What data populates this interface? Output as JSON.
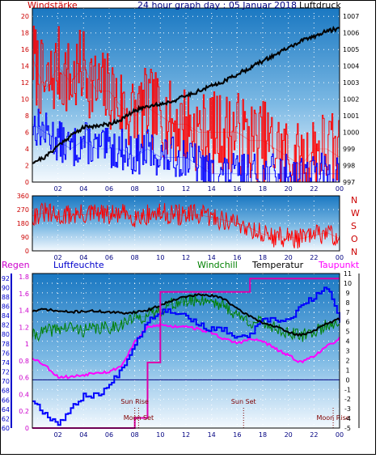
{
  "top_panel": {
    "title": "24 hour graph day : 05 Januar 2018",
    "left_label": "Windstärke",
    "right_label": "Luftdruck",
    "colors": {
      "gust": "#ff0000",
      "wind": "#0000ff",
      "pressure": "#000000",
      "label_left": "#cc0000",
      "label_right": "#000000",
      "title": "#000080"
    }
  },
  "mid_panel": {
    "compass": [
      "N",
      "W",
      "S",
      "O",
      "N"
    ],
    "colors": {
      "direction": "#ff0000",
      "compass": "#cc0000"
    }
  },
  "bottom_panel": {
    "labels": {
      "regen": "Regen",
      "luftfeuchte": "Luftfeuchte",
      "windchill": "Windchill",
      "temperatur": "Temperatur",
      "taupunkt": "Taupunkt"
    },
    "annotations": {
      "sun_rise": "Sun Rise",
      "sun_set": "Sun Set",
      "moon_set": "Moon Set",
      "moon_rise": "Moon Rise"
    },
    "colors": {
      "regen": "#cc00cc",
      "luftfeuchte": "#0000cc",
      "windchill": "#008000",
      "temperatur": "#000000",
      "taupunkt": "#ff00ff",
      "zero_line": "#000080"
    }
  },
  "x_ticks": [
    "02",
    "04",
    "06",
    "08",
    "10",
    "12",
    "14",
    "16",
    "18",
    "20",
    "22",
    "00"
  ],
  "chart_data": [
    {
      "type": "line",
      "name": "wind_pressure",
      "x": [
        0,
        1,
        2,
        3,
        4,
        5,
        6,
        7,
        8,
        9,
        10,
        11,
        12,
        13,
        14,
        15,
        16,
        17,
        18,
        19,
        20,
        21,
        22,
        23,
        24
      ],
      "series": [
        {
          "name": "Windstärke (Böen)",
          "axis": "left",
          "values": [
            15,
            11,
            14,
            12,
            14,
            11,
            11,
            9,
            8,
            9,
            8,
            7,
            7,
            6,
            6,
            6,
            6,
            5,
            5,
            4,
            3,
            2,
            4,
            4,
            3
          ]
        },
        {
          "name": "Windstärke",
          "axis": "left",
          "values": [
            7,
            6,
            5,
            4,
            5,
            4,
            4,
            4,
            3,
            4,
            3,
            3,
            3,
            2,
            1,
            1,
            1,
            1,
            1,
            1,
            1,
            1,
            1,
            1,
            1
          ]
        },
        {
          "name": "Luftdruck",
          "axis": "right",
          "values": [
            998.2,
            998.5,
            999.2,
            999.8,
            1000.3,
            1000.4,
            1000.5,
            1000.8,
            1001.3,
            1001.6,
            1001.7,
            1001.9,
            1002.2,
            1002.5,
            1002.8,
            1003.1,
            1003.5,
            1003.9,
            1004.3,
            1004.7,
            1005.1,
            1005.5,
            1005.8,
            1006.1,
            1006.3
          ]
        }
      ],
      "y_left_ticks": [
        0,
        2,
        4,
        6,
        8,
        10,
        12,
        14,
        16,
        18,
        20
      ],
      "y_right_ticks": [
        997,
        998,
        999,
        1000,
        1001,
        1002,
        1003,
        1004,
        1005,
        1006,
        1007
      ],
      "ylim_left": [
        0,
        21
      ],
      "ylim_right": [
        997,
        1007.5
      ]
    },
    {
      "type": "line",
      "name": "wind_direction",
      "x": [
        0,
        1,
        2,
        3,
        4,
        5,
        6,
        7,
        8,
        9,
        10,
        11,
        12,
        13,
        14,
        15,
        16,
        17,
        18,
        19,
        20,
        21,
        22,
        23,
        24
      ],
      "series": [
        {
          "name": "Windrichtung",
          "values": [
            230,
            250,
            220,
            240,
            235,
            245,
            230,
            240,
            225,
            235,
            245,
            240,
            230,
            235,
            220,
            200,
            180,
            150,
            110,
            90,
            90,
            80,
            100,
            120,
            80
          ]
        }
      ],
      "y_ticks": [
        0,
        90,
        180,
        270,
        360
      ],
      "ylim": [
        0,
        360
      ]
    },
    {
      "type": "line",
      "name": "humidity_temperature",
      "x": [
        0,
        1,
        2,
        3,
        4,
        5,
        6,
        7,
        8,
        9,
        10,
        11,
        12,
        13,
        14,
        15,
        16,
        17,
        18,
        19,
        20,
        21,
        22,
        23,
        24
      ],
      "series": [
        {
          "name": "Temperatur",
          "axis": "right",
          "values": [
            7.1,
            7.3,
            7.1,
            7.0,
            7.1,
            7.1,
            7.0,
            6.9,
            7.0,
            7.2,
            7.7,
            8.3,
            8.6,
            8.8,
            8.7,
            8.4,
            7.3,
            6.6,
            5.9,
            5.5,
            4.9,
            4.6,
            5.1,
            5.8,
            6.3
          ]
        },
        {
          "name": "Windchill",
          "axis": "right",
          "values": [
            4.5,
            5.0,
            5.3,
            5.4,
            5.1,
            5.3,
            5.4,
            5.8,
            6.4,
            6.6,
            7.2,
            7.9,
            8.1,
            8.3,
            8.2,
            7.6,
            6.7,
            6.0,
            5.9,
            5.4,
            4.8,
            4.5,
            5.0,
            5.6,
            6.1
          ]
        },
        {
          "name": "Taupunkt",
          "axis": "right",
          "values": [
            2.3,
            1.5,
            0.3,
            0.3,
            0.5,
            0.8,
            0.8,
            1.5,
            3.9,
            5.4,
            5.7,
            5.5,
            5.6,
            5.2,
            4.9,
            4.2,
            3.8,
            4.2,
            4.0,
            3.2,
            2.5,
            1.8,
            2.5,
            3.4,
            4.3
          ]
        },
        {
          "name": "Luftfeuchte",
          "axis": "left",
          "values": [
            66,
            63,
            61,
            64,
            67,
            67,
            69,
            73,
            78,
            83,
            85,
            85,
            84,
            82,
            81,
            81,
            79,
            80,
            83,
            83,
            83,
            86,
            88,
            90,
            83
          ]
        },
        {
          "name": "Regen",
          "axis": "rain",
          "values": [
            0,
            0,
            0,
            0,
            0,
            0,
            0,
            0,
            0.12,
            0.78,
            1.62,
            1.62,
            1.62,
            1.62,
            1.62,
            1.62,
            1.62,
            1.78,
            1.78,
            1.78,
            1.78,
            1.78,
            1.78,
            1.78,
            1.78
          ]
        }
      ],
      "y_humidity_ticks": [
        60,
        62,
        64,
        66,
        68,
        70,
        72,
        74,
        76,
        78,
        80,
        82,
        84,
        86,
        88,
        90,
        92
      ],
      "y_rain_ticks": [
        0,
        0.2,
        0.4,
        0.6,
        0.8,
        1,
        1.2,
        1.4,
        1.6,
        1.8
      ],
      "y_temp_ticks": [
        -5,
        -4,
        -3,
        -2,
        -1,
        0,
        1,
        2,
        3,
        4,
        5,
        6,
        7,
        8,
        9,
        10,
        11
      ],
      "ylim_humidity": [
        60,
        93
      ],
      "ylim_rain": [
        0,
        1.84
      ],
      "ylim_temp": [
        -5,
        11
      ],
      "events": [
        {
          "label_key": "sun_rise",
          "x": 8.0
        },
        {
          "label_key": "moon_set",
          "x": 8.3
        },
        {
          "label_key": "sun_set",
          "x": 16.5
        },
        {
          "label_key": "moon_rise",
          "x": 23.5
        }
      ]
    }
  ]
}
